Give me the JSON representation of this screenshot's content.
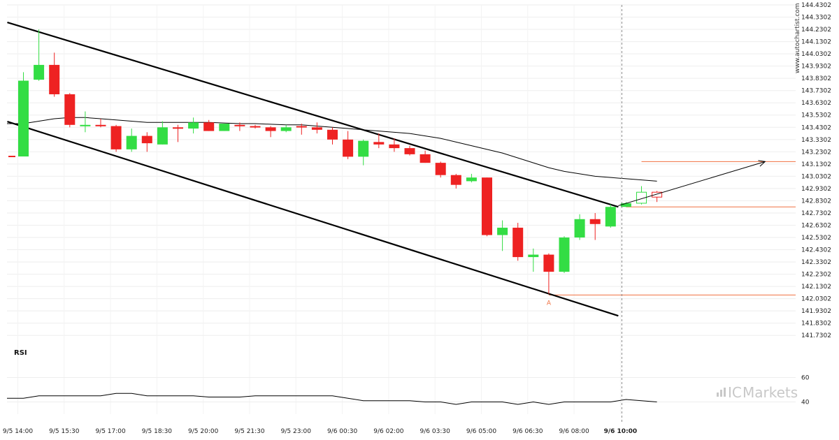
{
  "brand": {
    "prefix": "IC",
    "name": "Markets",
    "watermark": "www.autochartist.com"
  },
  "colors": {
    "bull": "#33dd44",
    "bear": "#ee2222",
    "channel": "#000000",
    "ma": "#000000",
    "level": "#f07040",
    "rsi": "#000000"
  },
  "chart_data": [
    {
      "type": "candlestick",
      "title": "",
      "ylim": [
        141.6802,
        144.4302
      ],
      "y_ticks": [
        "144.4302",
        "144.3302",
        "144.2302",
        "144.1302",
        "144.0302",
        "143.9302",
        "143.8302",
        "143.7302",
        "143.6302",
        "143.5302",
        "143.4302",
        "143.3302",
        "143.2302",
        "143.1302",
        "143.0302",
        "142.9302",
        "142.8302",
        "142.7302",
        "142.6302",
        "142.5302",
        "142.4302",
        "142.3302",
        "142.2302",
        "142.1302",
        "142.0302",
        "141.9302",
        "141.8302",
        "141.7302"
      ],
      "x_labels": [
        "9/5 14:00",
        "9/5 15:30",
        "9/5 17:00",
        "9/5 18:30",
        "9/5 20:00",
        "9/5 21:30",
        "9/5 23:00",
        "9/6 00:30",
        "9/6 02:00",
        "9/6 03:30",
        "9/6 05:00",
        "9/6 06:30",
        "9/6 08:00",
        "9/6 10:00"
      ],
      "x_label_index": [
        0,
        3,
        6,
        9,
        12,
        15,
        18,
        21,
        24,
        27,
        30,
        33,
        36,
        39
      ],
      "current_x_label_index": 13,
      "candles": [
        {
          "o": 143.192,
          "h": 143.88,
          "l": 143.192,
          "c": 143.811
        },
        {
          "o": 143.819,
          "h": 144.23,
          "l": 143.81,
          "c": 143.94
        },
        {
          "o": 143.94,
          "h": 144.04,
          "l": 143.68,
          "c": 143.7
        },
        {
          "o": 143.7,
          "h": 143.71,
          "l": 143.43,
          "c": 143.45
        },
        {
          "o": 143.44,
          "h": 143.56,
          "l": 143.39,
          "c": 143.45
        },
        {
          "o": 143.45,
          "h": 143.5,
          "l": 143.43,
          "c": 143.44
        },
        {
          "o": 143.44,
          "h": 143.45,
          "l": 143.23,
          "c": 143.25
        },
        {
          "o": 143.25,
          "h": 143.42,
          "l": 143.23,
          "c": 143.36
        },
        {
          "o": 143.36,
          "h": 143.39,
          "l": 143.23,
          "c": 143.3
        },
        {
          "o": 143.29,
          "h": 143.48,
          "l": 143.29,
          "c": 143.43
        },
        {
          "o": 143.43,
          "h": 143.45,
          "l": 143.31,
          "c": 143.42
        },
        {
          "o": 143.42,
          "h": 143.51,
          "l": 143.38,
          "c": 143.47
        },
        {
          "o": 143.47,
          "h": 143.49,
          "l": 143.4,
          "c": 143.4
        },
        {
          "o": 143.4,
          "h": 143.46,
          "l": 143.4,
          "c": 143.46
        },
        {
          "o": 143.45,
          "h": 143.47,
          "l": 143.4,
          "c": 143.44
        },
        {
          "o": 143.44,
          "h": 143.45,
          "l": 143.42,
          "c": 143.43
        },
        {
          "o": 143.43,
          "h": 143.44,
          "l": 143.35,
          "c": 143.4
        },
        {
          "o": 143.4,
          "h": 143.45,
          "l": 143.39,
          "c": 143.43
        },
        {
          "o": 143.44,
          "h": 143.46,
          "l": 143.37,
          "c": 143.43
        },
        {
          "o": 143.43,
          "h": 143.47,
          "l": 143.38,
          "c": 143.41
        },
        {
          "o": 143.41,
          "h": 143.43,
          "l": 143.29,
          "c": 143.33
        },
        {
          "o": 143.33,
          "h": 143.4,
          "l": 143.17,
          "c": 143.19
        },
        {
          "o": 143.19,
          "h": 143.33,
          "l": 143.12,
          "c": 143.32
        },
        {
          "o": 143.31,
          "h": 143.38,
          "l": 143.26,
          "c": 143.29
        },
        {
          "o": 143.29,
          "h": 143.34,
          "l": 143.23,
          "c": 143.26
        },
        {
          "o": 143.26,
          "h": 143.28,
          "l": 143.2,
          "c": 143.21
        },
        {
          "o": 143.21,
          "h": 143.24,
          "l": 143.14,
          "c": 143.14
        },
        {
          "o": 143.14,
          "h": 143.15,
          "l": 143.02,
          "c": 143.04
        },
        {
          "o": 143.04,
          "h": 143.05,
          "l": 142.93,
          "c": 142.96
        },
        {
          "o": 142.99,
          "h": 143.05,
          "l": 142.98,
          "c": 143.02
        },
        {
          "o": 143.02,
          "h": 143.02,
          "l": 142.54,
          "c": 142.55
        },
        {
          "o": 142.55,
          "h": 142.67,
          "l": 142.42,
          "c": 142.61
        },
        {
          "o": 142.61,
          "h": 142.65,
          "l": 142.34,
          "c": 142.37
        },
        {
          "o": 142.37,
          "h": 142.44,
          "l": 142.25,
          "c": 142.39
        },
        {
          "o": 142.39,
          "h": 142.4,
          "l": 142.07,
          "c": 142.25
        },
        {
          "o": 142.25,
          "h": 142.54,
          "l": 142.24,
          "c": 142.53
        },
        {
          "o": 142.53,
          "h": 142.72,
          "l": 142.51,
          "c": 142.68
        },
        {
          "o": 142.68,
          "h": 142.73,
          "l": 142.51,
          "c": 142.64
        },
        {
          "o": 142.62,
          "h": 142.8,
          "l": 142.61,
          "c": 142.78
        },
        {
          "o": 142.78,
          "h": 142.82,
          "l": 142.78,
          "c": 142.81
        },
        {
          "o": 142.81,
          "h": 142.95,
          "l": 142.8,
          "c": 142.9
        },
        {
          "o": 142.9,
          "h": 142.91,
          "l": 142.82,
          "c": 142.86
        }
      ],
      "moving_average": [
        143.46,
        143.48,
        143.5,
        143.51,
        143.51,
        143.5,
        143.49,
        143.48,
        143.47,
        143.47,
        143.47,
        143.47,
        143.47,
        143.465,
        143.46,
        143.46,
        143.455,
        143.45,
        143.45,
        143.44,
        143.43,
        143.42,
        143.41,
        143.4,
        143.39,
        143.38,
        143.36,
        143.34,
        143.31,
        143.28,
        143.25,
        143.22,
        143.18,
        143.14,
        143.1,
        143.07,
        143.05,
        143.03,
        143.02,
        143.01,
        143.0,
        142.99
      ],
      "channel_upper": {
        "start": {
          "i": -0.5,
          "v": 144.27
        },
        "end": {
          "i": 38.5,
          "v": 142.78
        }
      },
      "channel_lower": {
        "start": {
          "i": -0.5,
          "v": 143.46
        },
        "end": {
          "i": 38.5,
          "v": 141.89
        }
      },
      "levels": [
        {
          "value": 143.15,
          "from_i": 40.0,
          "to_i": 50.0
        },
        {
          "value": 142.78,
          "from_i": 39.0,
          "to_i": 50.0
        },
        {
          "value": 142.06,
          "from_i": 34.0,
          "to_i": 50.0
        }
      ],
      "point_label": {
        "text": "A",
        "i": 34,
        "v": 142.03
      },
      "left_marker_value": 143.192,
      "forecast_arrow": {
        "from": {
          "i": 38.5,
          "v": 142.79
        },
        "to": {
          "i": 48.0,
          "v": 143.15
        }
      }
    },
    {
      "type": "line",
      "title": "RSI",
      "ylim": [
        30,
        70
      ],
      "y_ticks": [
        "60",
        "40"
      ],
      "y_tick_values": [
        60,
        40
      ],
      "values": [
        43,
        45,
        45,
        45,
        45,
        45,
        47,
        47,
        45,
        45,
        45,
        45,
        44,
        44,
        44,
        45,
        45,
        45,
        45,
        45,
        45,
        43,
        41,
        41,
        41,
        41,
        40,
        40,
        38,
        40,
        40,
        40,
        38,
        40,
        38,
        40,
        40,
        40,
        40,
        42,
        41,
        40
      ]
    }
  ]
}
